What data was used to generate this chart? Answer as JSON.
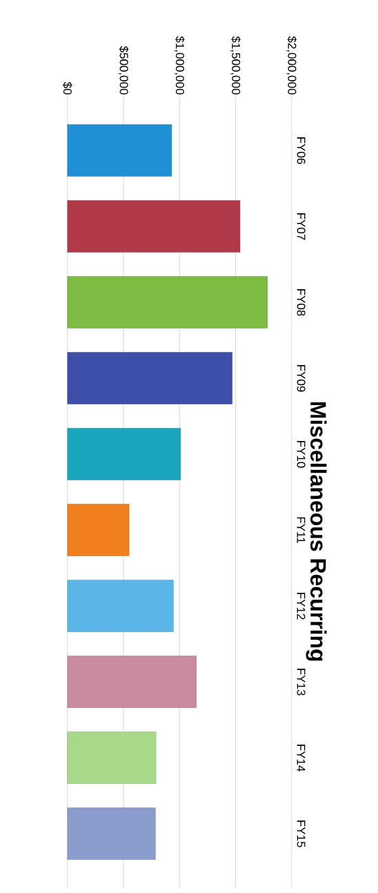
{
  "chart_data": {
    "type": "bar",
    "orientation": "horizontal",
    "title": "Miscellaneous Recurring",
    "categories": [
      "FY06",
      "FY07",
      "FY08",
      "FY09",
      "FY10",
      "FY11",
      "FY12",
      "FY13",
      "FY14",
      "FY15"
    ],
    "values": [
      930000,
      1540000,
      1785000,
      1470000,
      1010000,
      550000,
      945000,
      1150000,
      790000,
      785000
    ],
    "colors": [
      "#1f8fd6",
      "#b03a4a",
      "#7dbb42",
      "#3d4fa8",
      "#1aa6bf",
      "#f07f1f",
      "#5ab6e6",
      "#c88a9e",
      "#a8d88a",
      "#8a9ccc"
    ],
    "xlim": [
      0,
      2000000
    ],
    "xticks": [
      {
        "value": 0,
        "label": "$0"
      },
      {
        "value": 500000,
        "label": "$500,000"
      },
      {
        "value": 1000000,
        "label": "$1,000,000"
      },
      {
        "value": 1500000,
        "label": "$1,500,000"
      },
      {
        "value": 2000000,
        "label": "$2,000,000"
      }
    ],
    "grid": "x"
  }
}
